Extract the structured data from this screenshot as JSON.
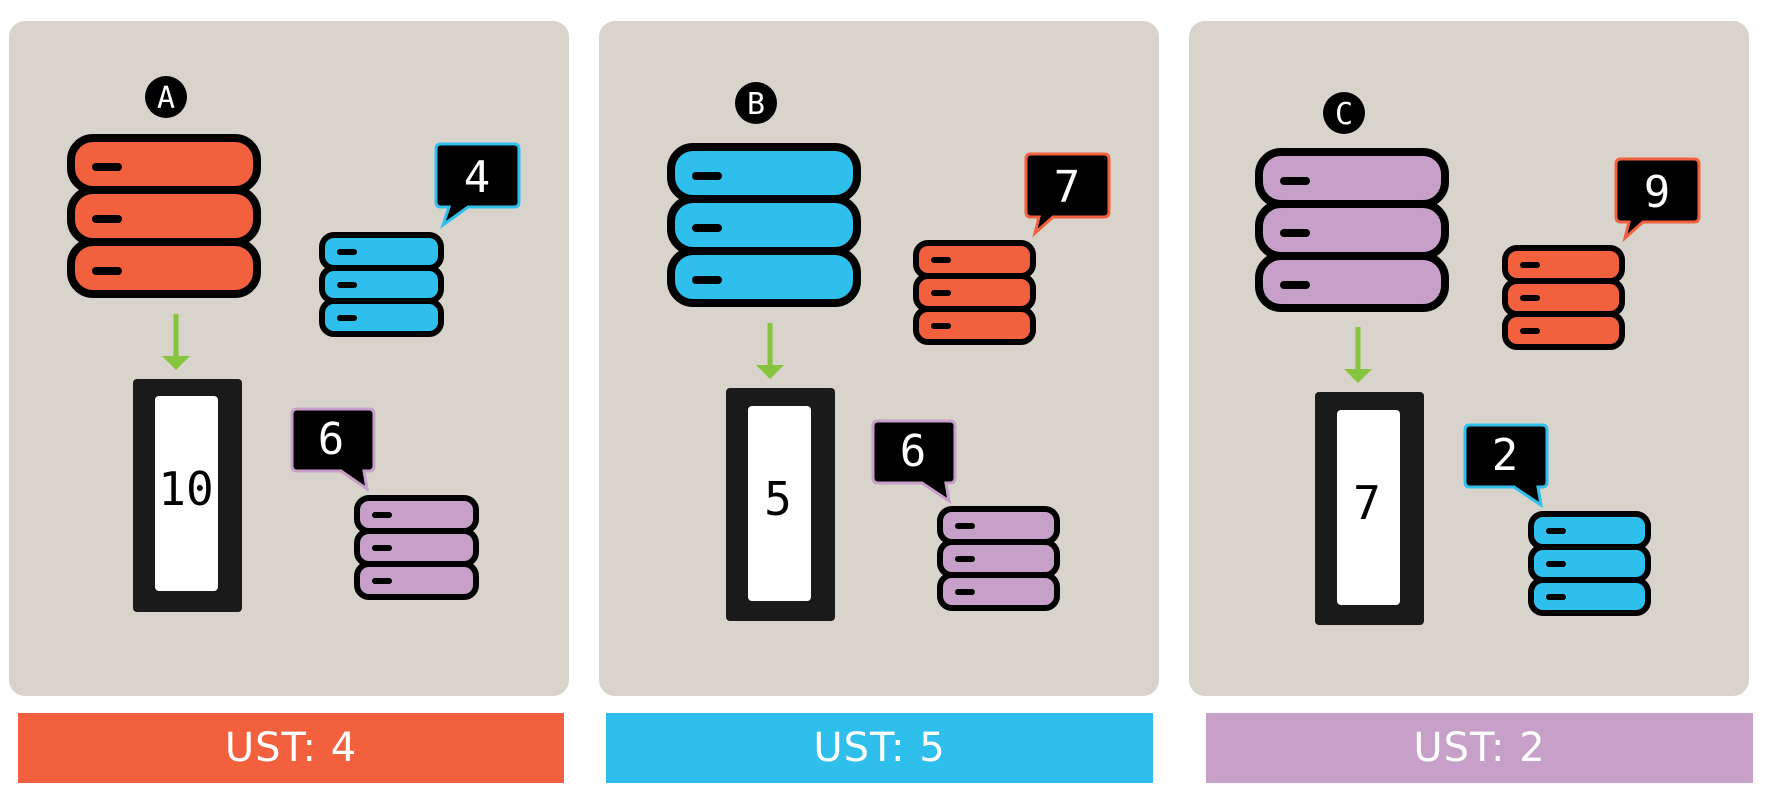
{
  "colors": {
    "red": "#f2603e",
    "blue": "#2fbfec",
    "purple": "#c7a0ca",
    "black": "#1a1a1a",
    "panel": "#d8d4cc",
    "arrow": "#86c440"
  },
  "panels": [
    {
      "marker": "A",
      "main_server_color": "red",
      "phone_value": "10",
      "bubble_1": {
        "value": "4",
        "color": "blue"
      },
      "bubble_2": {
        "value": "6",
        "color": "purple"
      },
      "ust_label": "UST: 4",
      "ust_color": "red"
    },
    {
      "marker": "B",
      "main_server_color": "blue",
      "phone_value": "5",
      "bubble_1": {
        "value": "7",
        "color": "red"
      },
      "bubble_2": {
        "value": "6",
        "color": "purple"
      },
      "ust_label": "UST: 5",
      "ust_color": "blue"
    },
    {
      "marker": "C",
      "main_server_color": "purple",
      "phone_value": "7",
      "bubble_1": {
        "value": "9",
        "color": "red"
      },
      "bubble_2": {
        "value": "2",
        "color": "blue"
      },
      "ust_label": "UST: 2",
      "ust_color": "purple"
    }
  ]
}
